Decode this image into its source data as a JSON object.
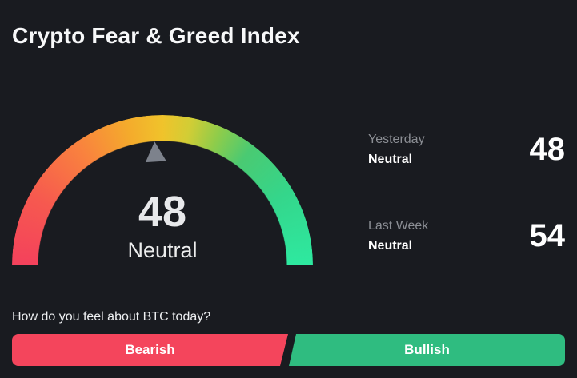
{
  "chart_data": {
    "type": "gauge",
    "title": "Crypto Fear & Greed Index",
    "value": 48,
    "classification": "Neutral",
    "range": [
      0,
      100
    ],
    "arc_gradient": [
      "#f4415c",
      "#f9823e",
      "#f0c32b",
      "#8fcc4a",
      "#2ee9a0"
    ],
    "needle_color": "#7d828c",
    "history": [
      {
        "period": "Yesterday",
        "classification": "Neutral",
        "value": 48
      },
      {
        "period": "Last Week",
        "classification": "Neutral",
        "value": 54
      }
    ]
  },
  "header": {
    "title": "Crypto Fear & Greed Index"
  },
  "gauge": {
    "value": "48",
    "label": "Neutral"
  },
  "history": [
    {
      "period": "Yesterday",
      "label": "Neutral",
      "value": "48"
    },
    {
      "period": "Last Week",
      "label": "Neutral",
      "value": "54"
    }
  ],
  "vote": {
    "question": "How do you feel about BTC today?",
    "bearish": "Bearish",
    "bullish": "Bullish"
  },
  "theme": {
    "background": "#191b20",
    "bearish_red": "#f4455c",
    "bullish_green": "#2fbc80",
    "muted_text": "#8b8e94",
    "needle": "#7d828c"
  }
}
